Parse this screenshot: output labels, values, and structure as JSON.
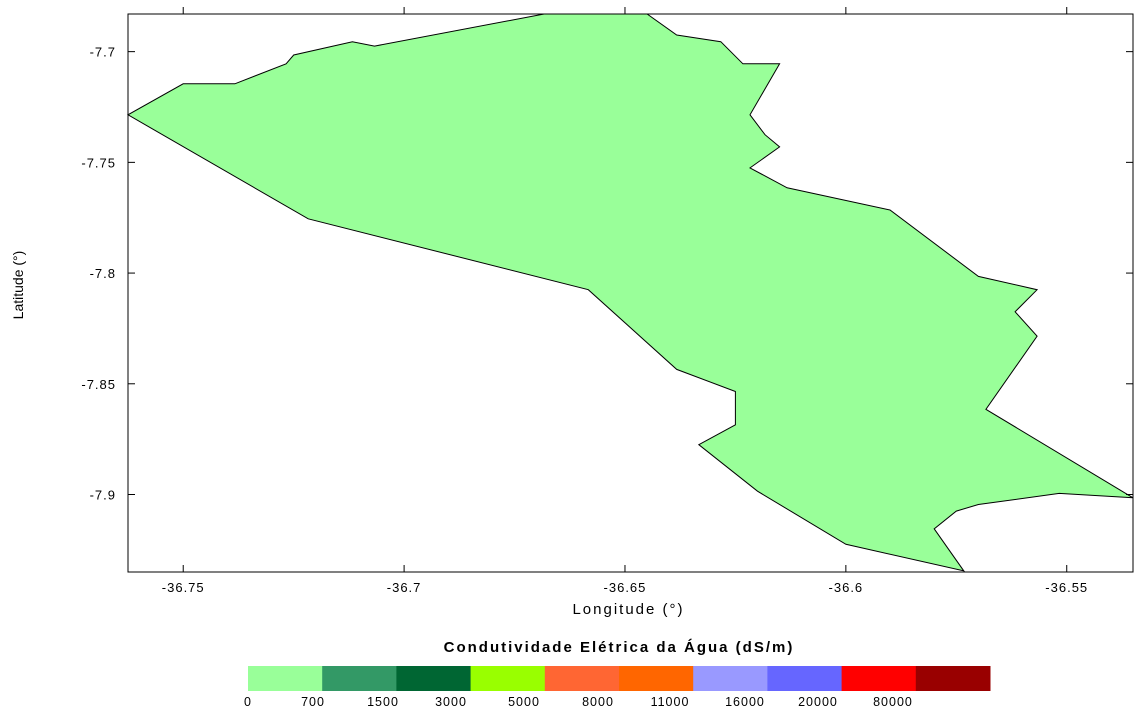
{
  "chart_data": {
    "type": "choropleth-map",
    "xlabel": "Longitude (°)",
    "ylabel": "Latitude (°)",
    "xlim": [
      -36.7625,
      -36.535
    ],
    "ylim": [
      -7.935,
      -7.683
    ],
    "x_ticks": [
      -36.75,
      -36.7,
      -36.65,
      -36.6,
      -36.55
    ],
    "x_tick_labels": [
      "-36.75",
      "-36.7",
      "-36.65",
      "-36.6",
      "-36.55"
    ],
    "y_ticks": [
      -7.7,
      -7.75,
      -7.8,
      -7.85,
      -7.9
    ],
    "y_tick_labels": [
      "-7.7",
      "-7.75",
      "-7.8",
      "-7.85",
      "-7.9"
    ],
    "grid": false,
    "region": {
      "fill_class": "0-700",
      "fill_color": "#99ff99",
      "boundary": [
        [
          -36.6683,
          -7.683
        ],
        [
          -36.645,
          -7.683
        ],
        [
          -36.6383,
          -7.6925
        ],
        [
          -36.6283,
          -7.6955
        ],
        [
          -36.6233,
          -7.7055
        ],
        [
          -36.615,
          -7.7055
        ],
        [
          -36.6217,
          -7.7285
        ],
        [
          -36.6183,
          -7.7375
        ],
        [
          -36.615,
          -7.743
        ],
        [
          -36.6217,
          -7.7525
        ],
        [
          -36.6133,
          -7.7615
        ],
        [
          -36.59,
          -7.7715
        ],
        [
          -36.57,
          -7.8015
        ],
        [
          -36.5567,
          -7.8075
        ],
        [
          -36.5617,
          -7.8175
        ],
        [
          -36.5567,
          -7.8285
        ],
        [
          -36.5683,
          -7.8615
        ],
        [
          -36.535,
          -7.9015
        ],
        [
          -36.5517,
          -7.8995
        ],
        [
          -36.57,
          -7.9045
        ],
        [
          -36.575,
          -7.9075
        ],
        [
          -36.58,
          -7.9155
        ],
        [
          -36.5733,
          -7.9345
        ],
        [
          -36.6,
          -7.9225
        ],
        [
          -36.62,
          -7.8985
        ],
        [
          -36.6333,
          -7.8775
        ],
        [
          -36.625,
          -7.8685
        ],
        [
          -36.625,
          -7.8535
        ],
        [
          -36.6383,
          -7.8435
        ],
        [
          -36.6583,
          -7.8075
        ],
        [
          -36.7217,
          -7.7755
        ],
        [
          -36.7625,
          -7.7285
        ],
        [
          -36.75,
          -7.7145
        ],
        [
          -36.7383,
          -7.7145
        ],
        [
          -36.7267,
          -7.7055
        ],
        [
          -36.725,
          -7.7015
        ],
        [
          -36.7117,
          -7.6955
        ],
        [
          -36.7067,
          -7.6975
        ],
        [
          -36.6683,
          -7.683
        ]
      ]
    },
    "legend": {
      "title": "Condutividade Elétrica da Água (dS/m)",
      "placement": "bottom",
      "labels": [
        "0",
        "700",
        "1500",
        "3000",
        "5000",
        "8000",
        "11000",
        "16000",
        "20000",
        "80000"
      ],
      "colors": [
        "#99ff99",
        "#339966",
        "#006633",
        "#99ff00",
        "#ff6633",
        "#ff6600",
        "#9999ff",
        "#6666ff",
        "#ff0000",
        "#990000"
      ]
    }
  }
}
